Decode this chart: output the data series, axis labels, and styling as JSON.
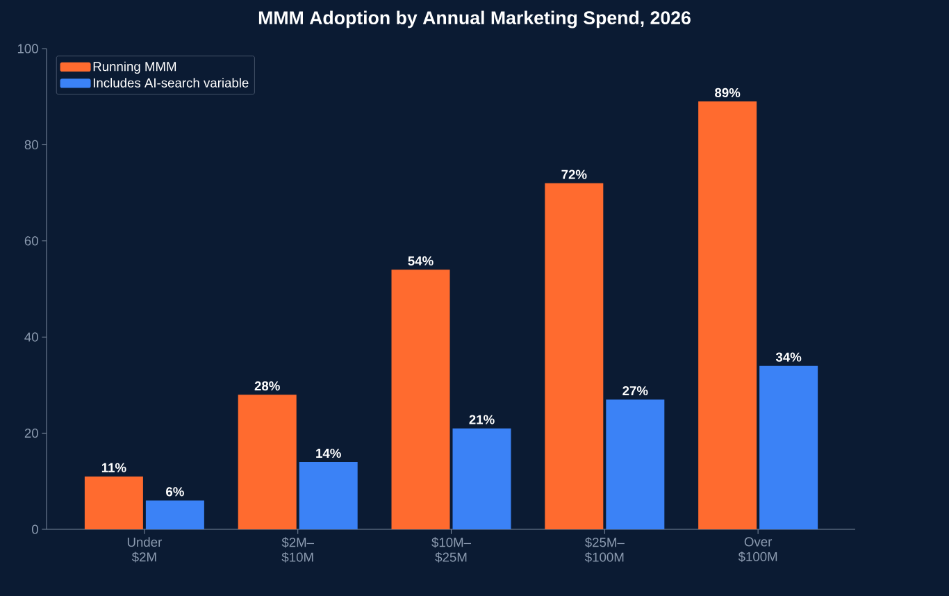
{
  "chart_data": {
    "type": "bar",
    "title": "MMM Adoption by Annual Marketing Spend, 2026",
    "categories": [
      "Under $2M",
      "$2M–$10M",
      "$10M–$25M",
      "$25M–$100M",
      "Over $100M"
    ],
    "series": [
      {
        "name": "Running MMM",
        "color": "#ff6b2f",
        "values": [
          11,
          28,
          54,
          72,
          89
        ],
        "value_labels": [
          "11%",
          "28%",
          "54%",
          "72%",
          "89%"
        ]
      },
      {
        "name": "Includes AI-search variable",
        "color": "#3b82f6",
        "values": [
          6,
          14,
          21,
          27,
          34
        ],
        "value_labels": [
          "6%",
          "14%",
          "21%",
          "27%",
          "34%"
        ]
      }
    ],
    "ylim": [
      0,
      100
    ],
    "yticks": [
      0,
      20,
      40,
      60,
      80,
      100
    ],
    "grid": false,
    "legend": "top left"
  }
}
